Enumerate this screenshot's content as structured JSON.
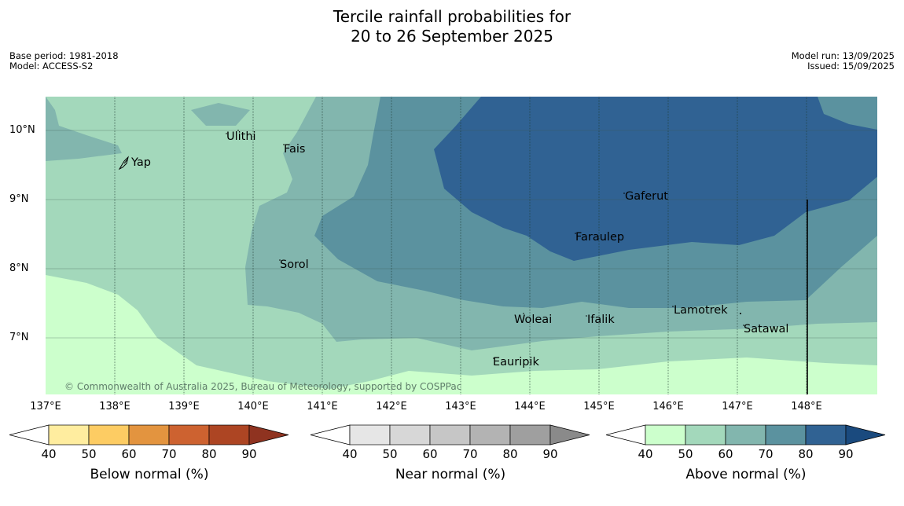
{
  "title_line1": "Tercile rainfall probabilities for",
  "title_line2": "20 to 26 September 2025",
  "base_period": "Base period: 1981-2018",
  "model": "Model: ACCESS-S2",
  "model_run": "Model run: 13/09/2025",
  "issued": "Issued: 15/09/2025",
  "latitudes": [
    "10°N",
    "9°N",
    "8°N",
    "7°N"
  ],
  "longitudes": [
    "137°E",
    "138°E",
    "139°E",
    "140°E",
    "141°E",
    "142°E",
    "143°E",
    "144°E",
    "145°E",
    "146°E",
    "147°E",
    "148°E"
  ],
  "places": [
    "Yap",
    "Ulithi",
    "Fais",
    "Gaferut",
    "Faraulep",
    "Sorol",
    "Woleai",
    "Ifalik",
    "Lamotrek",
    "Satawal",
    "Eauripik"
  ],
  "copyright": "© Commonwealth of Australia 2025, Bureau of Meteorology, supported by COSPPac",
  "colorbars": [
    {
      "title": "Below normal (%)",
      "ticks": [
        "40",
        "50",
        "60",
        "70",
        "80",
        "90"
      ],
      "colors": [
        "#ffffff",
        "#ffed9f",
        "#fdcc63",
        "#e3943f",
        "#cd6230",
        "#ad4523",
        "#8f3320"
      ]
    },
    {
      "title": "Near normal (%)",
      "ticks": [
        "40",
        "50",
        "60",
        "70",
        "80",
        "90"
      ],
      "colors": [
        "#ffffff",
        "#e6e6e6",
        "#d7d7d7",
        "#c6c6c6",
        "#b3b3b3",
        "#9f9f9f",
        "#8a8a8a"
      ]
    },
    {
      "title": "Above normal (%)",
      "ticks": [
        "40",
        "50",
        "60",
        "70",
        "80",
        "90"
      ],
      "colors": [
        "#ffffff",
        "#ccffcc",
        "#a3d8bb",
        "#82b6ae",
        "#5b929f",
        "#306293",
        "#1a4a7e"
      ]
    }
  ]
}
